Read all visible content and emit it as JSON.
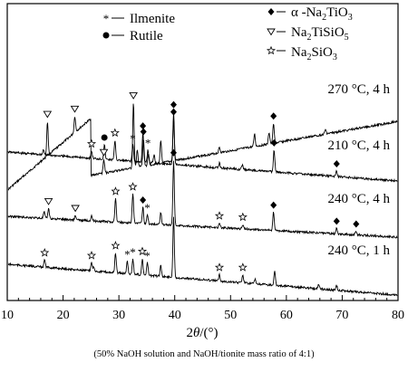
{
  "chart_data": {
    "type": "line",
    "x_label_parts": {
      "theta": "θ",
      "unit": "(°)"
    },
    "xlim": [
      10,
      80
    ],
    "x_ticks": [
      10,
      20,
      30,
      40,
      50,
      60,
      70,
      80
    ],
    "legend": [
      {
        "symbol": "asterisk",
        "name_base": "Ilmenite"
      },
      {
        "symbol": "circle",
        "name_base": "Rutile"
      },
      {
        "symbol": "diamond",
        "name_base": "α -Na",
        "sub1": "2",
        "mid": "TiO",
        "sub2": "3"
      },
      {
        "symbol": "triangle-down",
        "name_base": "Na",
        "sub1": "2",
        "mid": "TiSiO",
        "sub2": "5"
      },
      {
        "symbol": "star",
        "name_base": "Na",
        "sub1": "2",
        "mid": "SiO",
        "sub2": "3"
      }
    ],
    "series": [
      {
        "name": "270 °C, 4 h",
        "peaks": [
          [
            17.2,
            38
          ],
          [
            22.1,
            18
          ],
          [
            27.3,
            15
          ],
          [
            32.6,
            72
          ],
          [
            33.3,
            20
          ],
          [
            34.4,
            30
          ],
          [
            35.3,
            12
          ],
          [
            37.5,
            24
          ],
          [
            39.8,
            46
          ],
          [
            48.0,
            6
          ],
          [
            54.3,
            14
          ],
          [
            56.9,
            13
          ],
          [
            57.7,
            22
          ],
          [
            67.0,
            5
          ]
        ],
        "markers": [
          {
            "symbol": "triangle-down",
            "x": 17.2
          },
          {
            "symbol": "triangle-down",
            "x": 22.1
          },
          {
            "symbol": "triangle-down",
            "x": 27.3
          },
          {
            "symbol": "triangle-down",
            "x": 32.6
          },
          {
            "symbol": "diamond",
            "x": 34.4
          },
          {
            "symbol": "diamond",
            "x": 39.8
          },
          {
            "symbol": "diamond",
            "x": 57.7
          }
        ]
      },
      {
        "name": "210 °C, 4 h",
        "peaks": [
          [
            16.5,
            6
          ],
          [
            25.1,
            8
          ],
          [
            27.4,
            16
          ],
          [
            29.3,
            22
          ],
          [
            32.5,
            18
          ],
          [
            34.3,
            32
          ],
          [
            35.2,
            14
          ],
          [
            36.3,
            9
          ],
          [
            39.8,
            58
          ],
          [
            48.0,
            5
          ],
          [
            52.1,
            5
          ],
          [
            57.8,
            24
          ],
          [
            69.0,
            6
          ]
        ],
        "markers": [
          {
            "symbol": "star",
            "x": 25.1
          },
          {
            "symbol": "circle",
            "x": 27.4
          },
          {
            "symbol": "star",
            "x": 29.3
          },
          {
            "symbol": "asterisk",
            "x": 32.5
          },
          {
            "symbol": "diamond",
            "x": 34.3
          },
          {
            "symbol": "asterisk",
            "x": 35.2
          },
          {
            "symbol": "diamond",
            "x": 39.8
          },
          {
            "symbol": "diamond",
            "x": 57.8
          },
          {
            "symbol": "diamond",
            "x": 69.0
          }
        ]
      },
      {
        "name": "240 °C, 4 h",
        "peaks": [
          [
            16.6,
            7
          ],
          [
            17.4,
            11
          ],
          [
            22.2,
            5
          ],
          [
            25.1,
            6
          ],
          [
            29.4,
            26
          ],
          [
            32.5,
            32
          ],
          [
            34.3,
            18
          ],
          [
            35.1,
            10
          ],
          [
            37.5,
            14
          ],
          [
            39.8,
            72
          ],
          [
            48.0,
            5
          ],
          [
            52.2,
            5
          ],
          [
            57.7,
            20
          ],
          [
            69.0,
            6
          ],
          [
            72.5,
            4
          ]
        ],
        "markers": [
          {
            "symbol": "triangle-down",
            "x": 17.4
          },
          {
            "symbol": "triangle-down",
            "x": 22.2
          },
          {
            "symbol": "star",
            "x": 29.4
          },
          {
            "symbol": "star",
            "x": 32.5
          },
          {
            "symbol": "diamond",
            "x": 34.3
          },
          {
            "symbol": "asterisk",
            "x": 35.1
          },
          {
            "symbol": "diamond",
            "x": 39.8
          },
          {
            "symbol": "star",
            "x": 48.0
          },
          {
            "symbol": "star",
            "x": 52.2
          },
          {
            "symbol": "diamond",
            "x": 57.7
          },
          {
            "symbol": "diamond",
            "x": 69.0
          },
          {
            "symbol": "diamond",
            "x": 72.5
          }
        ]
      },
      {
        "name": "240 °C, 1 h",
        "peaks": [
          [
            16.7,
            8
          ],
          [
            25.1,
            9
          ],
          [
            25.5,
            5
          ],
          [
            29.4,
            22
          ],
          [
            31.5,
            14
          ],
          [
            32.5,
            17
          ],
          [
            34.2,
            18
          ],
          [
            35.1,
            14
          ],
          [
            37.5,
            12
          ],
          [
            39.8,
            66
          ],
          [
            48.0,
            7
          ],
          [
            52.2,
            9
          ],
          [
            54.4,
            5
          ],
          [
            57.9,
            15
          ],
          [
            65.8,
            5
          ],
          [
            69.0,
            5
          ]
        ],
        "markers": [
          {
            "symbol": "star",
            "x": 16.7
          },
          {
            "symbol": "star",
            "x": 25.1
          },
          {
            "symbol": "star",
            "x": 29.4
          },
          {
            "symbol": "asterisk",
            "x": 31.5
          },
          {
            "symbol": "asterisk",
            "x": 32.5
          },
          {
            "symbol": "star",
            "x": 34.2
          },
          {
            "symbol": "asterisk",
            "x": 35.1
          },
          {
            "symbol": "star",
            "x": 48.0
          },
          {
            "symbol": "star",
            "x": 52.2
          }
        ]
      }
    ],
    "grid": false,
    "legend_placement": "top"
  },
  "caption": "(50% NaOH  solution and NaOH/tionite mass ratio of 4:1)"
}
